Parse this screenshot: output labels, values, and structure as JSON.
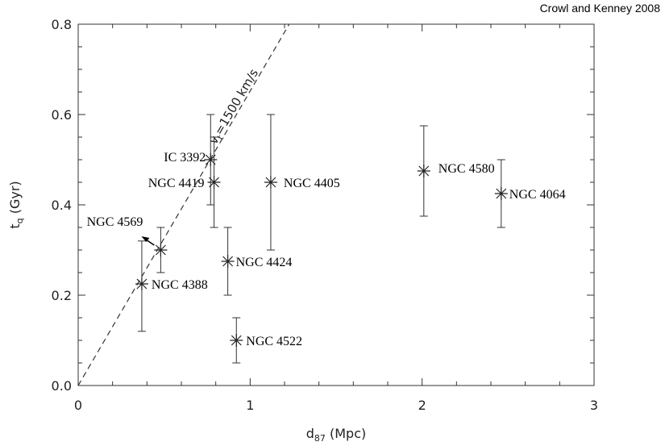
{
  "credit": "Crowl and Kenney 2008",
  "chart_data": {
    "type": "scatter",
    "xlabel": {
      "main": "d",
      "sub": "87",
      "unit": "(Mpc)"
    },
    "ylabel": {
      "main": "t",
      "sub": "q",
      "unit": "(Gyr)"
    },
    "xlim": [
      0,
      3
    ],
    "ylim": [
      0,
      0.8
    ],
    "xticks": [
      "0",
      "1",
      "2",
      "3"
    ],
    "yticks": [
      "0.0",
      "0.2",
      "0.4",
      "0.6",
      "0.8"
    ],
    "grid": false,
    "line": {
      "label_main": "v",
      "label_sub": "t",
      "label_rest": "=1500 km/s",
      "slope_gyr_per_mpc": 0.652,
      "style": "dashed"
    },
    "points": [
      {
        "name": "NGC 4388",
        "x": 0.37,
        "y": 0.225,
        "err_lo": 0.12,
        "err_hi": 0.32
      },
      {
        "name": "NGC 4569",
        "x": 0.48,
        "y": 0.3,
        "err_lo": 0.25,
        "err_hi": 0.35
      },
      {
        "name": "IC 3392",
        "x": 0.77,
        "y": 0.5,
        "err_lo": 0.4,
        "err_hi": 0.6
      },
      {
        "name": "NGC 4419",
        "x": 0.79,
        "y": 0.45,
        "err_lo": 0.35,
        "err_hi": 0.55
      },
      {
        "name": "NGC 4424",
        "x": 0.87,
        "y": 0.275,
        "err_lo": 0.2,
        "err_hi": 0.35
      },
      {
        "name": "NGC 4522",
        "x": 0.92,
        "y": 0.1,
        "err_lo": 0.05,
        "err_hi": 0.15
      },
      {
        "name": "NGC 4405",
        "x": 1.12,
        "y": 0.45,
        "err_lo": 0.3,
        "err_hi": 0.6
      },
      {
        "name": "NGC 4580",
        "x": 2.01,
        "y": 0.475,
        "err_lo": 0.375,
        "err_hi": 0.575
      },
      {
        "name": "NGC 4064",
        "x": 2.46,
        "y": 0.425,
        "err_lo": 0.35,
        "err_hi": 0.5
      }
    ]
  }
}
